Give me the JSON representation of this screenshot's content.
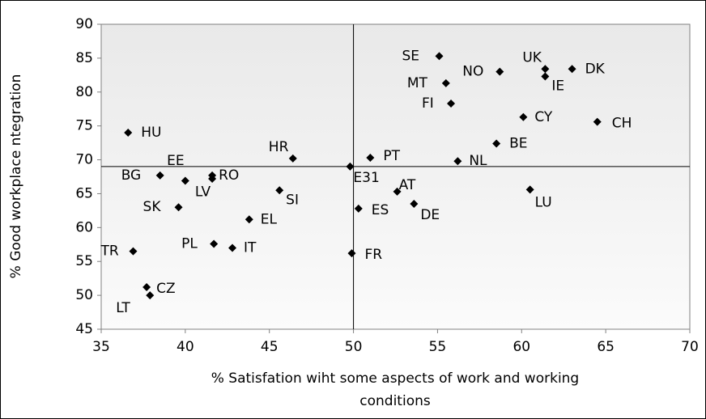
{
  "chart_data": {
    "type": "scatter",
    "xlabel": [
      "% Satisfation wiht some aspects of work and working",
      "conditions"
    ],
    "ylabel": "% Good workplace ntegration",
    "xlim": [
      35,
      70
    ],
    "xticks": [
      35,
      40,
      45,
      50,
      55,
      60,
      65,
      70
    ],
    "ylim": [
      45,
      90
    ],
    "yticks": [
      45,
      50,
      55,
      60,
      65,
      70,
      75,
      80,
      85,
      90
    ],
    "quadrant_lines": {
      "x": 50,
      "y": 69
    },
    "color": "#000000",
    "series": [
      {
        "name": null,
        "labels": [
          "HU",
          "HR",
          "BG",
          "LV",
          "EE",
          "RO",
          "SK",
          "SI",
          "EL",
          "PL",
          "IT",
          "TR",
          "CZ",
          "LT",
          "E31",
          "PT",
          "FR",
          "ES",
          "AT",
          "DE",
          "NL",
          "BE",
          "LU",
          "CY",
          "CH",
          "SE",
          "MT",
          "FI",
          "NO",
          "UK",
          "IE",
          "DK"
        ],
        "x": [
          36.6,
          46.4,
          38.5,
          40.0,
          41.6,
          41.6,
          39.6,
          45.6,
          43.8,
          41.7,
          42.8,
          36.9,
          37.7,
          37.9,
          49.8,
          51.0,
          49.9,
          50.3,
          52.6,
          53.6,
          56.2,
          58.5,
          60.5,
          60.1,
          64.5,
          55.1,
          55.5,
          55.8,
          58.7,
          61.4,
          61.4,
          63.0
        ],
        "values": [
          74.0,
          70.2,
          67.7,
          66.9,
          67.7,
          67.2,
          63.0,
          65.5,
          61.2,
          57.6,
          57.0,
          56.5,
          51.2,
          50.0,
          69.0,
          70.3,
          56.2,
          62.8,
          65.3,
          63.5,
          69.8,
          72.4,
          65.6,
          76.3,
          75.6,
          85.3,
          81.3,
          78.3,
          83.0,
          83.4,
          82.3,
          83.4
        ]
      }
    ]
  }
}
